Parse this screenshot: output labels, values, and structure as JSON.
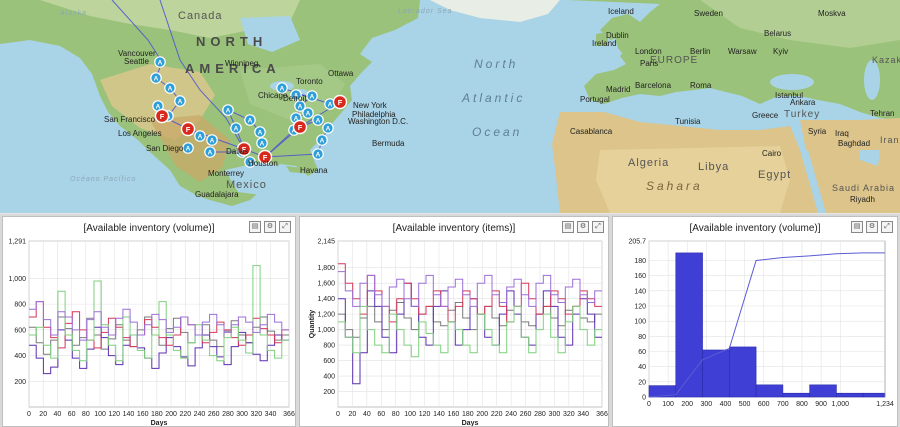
{
  "map": {
    "labels": {
      "canada": "Canada",
      "north": "NORTH",
      "america": "AMERICA",
      "atlantic_north": "North",
      "atlantic": "Atlantic",
      "ocean": "Ocean",
      "europe": "EUROPE",
      "algeria": "Algeria",
      "libya": "Libya",
      "egypt": "Egypt",
      "sahara": "Sahara",
      "mexico": "Mexico",
      "saudi": "Saudi Arabia",
      "turkey": "Turkey",
      "iran": "Iran",
      "kazak": "Kazak",
      "alaska": "Alaska",
      "labrador": "Labrador Sea",
      "pacific": "Océano Pacífico",
      "cities": [
        {
          "name": "Vancouver",
          "x": 118,
          "y": 50
        },
        {
          "name": "Seattle",
          "x": 124,
          "y": 58
        },
        {
          "name": "Chicago",
          "x": 258,
          "y": 92
        },
        {
          "name": "Toronto",
          "x": 296,
          "y": 78
        },
        {
          "name": "New York",
          "x": 353,
          "y": 102
        },
        {
          "name": "Philadelphia",
          "x": 352,
          "y": 111
        },
        {
          "name": "Washington D.C.",
          "x": 348,
          "y": 118
        },
        {
          "name": "San Francisco",
          "x": 104,
          "y": 116
        },
        {
          "name": "Los Angeles",
          "x": 118,
          "y": 130
        },
        {
          "name": "San Diego",
          "x": 146,
          "y": 145
        },
        {
          "name": "Dallas",
          "x": 226,
          "y": 148
        },
        {
          "name": "Houston",
          "x": 248,
          "y": 160
        },
        {
          "name": "Monterrey",
          "x": 208,
          "y": 170
        },
        {
          "name": "Guadalajara",
          "x": 195,
          "y": 191
        },
        {
          "name": "Havana",
          "x": 300,
          "y": 167
        },
        {
          "name": "Bermuda",
          "x": 372,
          "y": 140
        },
        {
          "name": "Winnipeg",
          "x": 225,
          "y": 60
        },
        {
          "name": "Ottawa",
          "x": 328,
          "y": 70
        },
        {
          "name": "Detroit",
          "x": 283,
          "y": 95
        },
        {
          "name": "Iceland",
          "x": 608,
          "y": 8
        },
        {
          "name": "Dublin",
          "x": 606,
          "y": 32
        },
        {
          "name": "Ireland",
          "x": 592,
          "y": 40
        },
        {
          "name": "London",
          "x": 635,
          "y": 48
        },
        {
          "name": "Paris",
          "x": 640,
          "y": 60
        },
        {
          "name": "Berlin",
          "x": 690,
          "y": 48
        },
        {
          "name": "Warsaw",
          "x": 728,
          "y": 48
        },
        {
          "name": "Kyiv",
          "x": 773,
          "y": 48
        },
        {
          "name": "Moskva",
          "x": 818,
          "y": 10
        },
        {
          "name": "Belarus",
          "x": 764,
          "y": 30
        },
        {
          "name": "Sweden",
          "x": 694,
          "y": 10
        },
        {
          "name": "Barcelona",
          "x": 635,
          "y": 82
        },
        {
          "name": "Roma",
          "x": 690,
          "y": 82
        },
        {
          "name": "Madrid",
          "x": 606,
          "y": 86
        },
        {
          "name": "Portugal",
          "x": 580,
          "y": 96
        },
        {
          "name": "Casablanca",
          "x": 570,
          "y": 128
        },
        {
          "name": "Tunisia",
          "x": 675,
          "y": 118
        },
        {
          "name": "Greece",
          "x": 752,
          "y": 112
        },
        {
          "name": "Istanbul",
          "x": 775,
          "y": 92
        },
        {
          "name": "Ankara",
          "x": 790,
          "y": 99
        },
        {
          "name": "Syria",
          "x": 808,
          "y": 128
        },
        {
          "name": "Iraq",
          "x": 835,
          "y": 130
        },
        {
          "name": "Baghdad",
          "x": 838,
          "y": 140
        },
        {
          "name": "Tehran",
          "x": 870,
          "y": 110
        },
        {
          "name": "Cairo",
          "x": 762,
          "y": 150
        },
        {
          "name": "Riyadh",
          "x": 850,
          "y": 196
        }
      ]
    },
    "markers_a": [
      {
        "x": 160,
        "y": 62
      },
      {
        "x": 156,
        "y": 78
      },
      {
        "x": 170,
        "y": 88
      },
      {
        "x": 180,
        "y": 101
      },
      {
        "x": 158,
        "y": 106
      },
      {
        "x": 168,
        "y": 116
      },
      {
        "x": 200,
        "y": 136
      },
      {
        "x": 212,
        "y": 140
      },
      {
        "x": 188,
        "y": 148
      },
      {
        "x": 210,
        "y": 152
      },
      {
        "x": 228,
        "y": 110
      },
      {
        "x": 250,
        "y": 120
      },
      {
        "x": 260,
        "y": 132
      },
      {
        "x": 262,
        "y": 143
      },
      {
        "x": 242,
        "y": 152
      },
      {
        "x": 250,
        "y": 162
      },
      {
        "x": 236,
        "y": 128
      },
      {
        "x": 296,
        "y": 95
      },
      {
        "x": 312,
        "y": 96
      },
      {
        "x": 300,
        "y": 106
      },
      {
        "x": 308,
        "y": 113
      },
      {
        "x": 296,
        "y": 118
      },
      {
        "x": 318,
        "y": 120
      },
      {
        "x": 328,
        "y": 128
      },
      {
        "x": 322,
        "y": 140
      },
      {
        "x": 318,
        "y": 154
      },
      {
        "x": 330,
        "y": 104
      },
      {
        "x": 294,
        "y": 130
      },
      {
        "x": 282,
        "y": 88
      }
    ],
    "markers_f": [
      {
        "x": 162,
        "y": 116
      },
      {
        "x": 188,
        "y": 129
      },
      {
        "x": 244,
        "y": 149
      },
      {
        "x": 265,
        "y": 157
      },
      {
        "x": 300,
        "y": 127
      },
      {
        "x": 340,
        "y": 102
      }
    ],
    "marker_a_letter": "A",
    "marker_f_letter": "F",
    "accent_a": "#2e9fd8",
    "accent_f": "#d9291c",
    "route_color": "#4a4fd6"
  },
  "panels": [
    {
      "title": "[Available inventory (volume)]",
      "buttons": [
        "▤",
        "⚙",
        "⤢"
      ]
    },
    {
      "title": "[Available inventory (items)]",
      "buttons": [
        "▤",
        "⚙",
        "⤢"
      ]
    },
    {
      "title": "[Available inventory (volume)]",
      "buttons": [
        "▤",
        "⚙",
        "⤢"
      ]
    }
  ],
  "chart_data": [
    {
      "type": "line",
      "title": "[Available inventory (volume)]",
      "xlabel": "Days",
      "ylabel": "",
      "x_ticks": [
        "0",
        "20",
        "40",
        "60",
        "80",
        "100",
        "120",
        "140",
        "160",
        "180",
        "200",
        "220",
        "240",
        "260",
        "280",
        "300",
        "320",
        "340",
        "366"
      ],
      "y_ticks": [
        "200",
        "400",
        "600",
        "800",
        "1,000",
        "1,291"
      ],
      "xlim": [
        0,
        366
      ],
      "ylim": [
        0,
        1291
      ],
      "grid": true,
      "series": [
        {
          "color": "#7a7a7a",
          "values": [
            620,
            500,
            410,
            520,
            700,
            610,
            480,
            540,
            690,
            560,
            450,
            530,
            640,
            520,
            470,
            600,
            700,
            560,
            480,
            610,
            690,
            580,
            500,
            560,
            640,
            520,
            470,
            590,
            670,
            560,
            500,
            620,
            700,
            590,
            520,
            560
          ]
        },
        {
          "color": "#5a2fb0",
          "values": [
            480,
            380,
            260,
            310,
            600,
            520,
            380,
            300,
            450,
            620,
            540,
            400,
            330,
            480,
            560,
            460,
            380,
            300,
            420,
            540,
            470,
            390,
            320,
            460,
            560,
            470,
            390,
            330,
            470,
            580,
            500,
            410,
            360,
            480,
            560,
            520
          ]
        },
        {
          "color": "#d6365a",
          "values": [
            700,
            820,
            620,
            540,
            460,
            650,
            740,
            600,
            520,
            460,
            580,
            690,
            620,
            540,
            470,
            560,
            680,
            620,
            540,
            480,
            560,
            700,
            640,
            560,
            500,
            580,
            660,
            600,
            540,
            480,
            560,
            690,
            610,
            560,
            500,
            600
          ]
        },
        {
          "color": "#7fd07f",
          "values": [
            560,
            620,
            480,
            380,
            900,
            560,
            440,
            360,
            520,
            980,
            640,
            480,
            360,
            700,
            560,
            440,
            380,
            560,
            820,
            560,
            440,
            380,
            500,
            640,
            520,
            400,
            360,
            540,
            620,
            520,
            420,
            1100,
            560,
            440,
            380,
            520
          ]
        },
        {
          "color": "#9b6fd8",
          "values": [
            760,
            820,
            680,
            560,
            740,
            700,
            600,
            520,
            680,
            740,
            620,
            560,
            690,
            760,
            660,
            560,
            640,
            720,
            680,
            580,
            620,
            700,
            640,
            560,
            660,
            720,
            640,
            580,
            640,
            700,
            660,
            580,
            640,
            720,
            660,
            600
          ]
        }
      ]
    },
    {
      "type": "line",
      "title": "[Available inventory (items)]",
      "xlabel": "Days",
      "ylabel": "Quantity",
      "x_ticks": [
        "0",
        "20",
        "40",
        "60",
        "80",
        "100",
        "120",
        "140",
        "160",
        "180",
        "200",
        "220",
        "240",
        "260",
        "280",
        "300",
        "320",
        "340",
        "366"
      ],
      "y_ticks": [
        "200",
        "400",
        "600",
        "800",
        "1,000",
        "1,200",
        "1,400",
        "1,600",
        "1,800",
        "2,145"
      ],
      "xlim": [
        0,
        366
      ],
      "ylim": [
        0,
        2145
      ],
      "grid": true,
      "series": [
        {
          "color": "#7a7a7a",
          "values": [
            1200,
            1000,
            900,
            1150,
            1300,
            1100,
            1000,
            1250,
            1350,
            1150,
            1000,
            1200,
            1300,
            1100,
            1050,
            1250,
            1350,
            1150,
            1000,
            1200,
            1300,
            1150,
            1050,
            1250,
            1300,
            1100,
            1050,
            1200,
            1300,
            1150,
            1050,
            1250,
            1300,
            1150,
            1100,
            1200
          ]
        },
        {
          "color": "#5a2fb0",
          "values": [
            1400,
            900,
            300,
            700,
            1500,
            1300,
            900,
            700,
            1200,
            1600,
            1300,
            900,
            800,
            1300,
            1500,
            1100,
            800,
            1000,
            1400,
            1200,
            900,
            800,
            1200,
            1500,
            1200,
            900,
            800,
            1200,
            1500,
            1300,
            900,
            800,
            1200,
            1400,
            1200,
            900
          ]
        },
        {
          "color": "#d6365a",
          "values": [
            1850,
            1600,
            1400,
            1200,
            1700,
            1500,
            1300,
            1100,
            1400,
            1600,
            1400,
            1200,
            1300,
            1500,
            1300,
            1100,
            1300,
            1500,
            1400,
            1200,
            1300,
            1500,
            1300,
            1100,
            1300,
            1600,
            1400,
            1200,
            1300,
            1500,
            1400,
            1200,
            1300,
            1500,
            1400,
            1300
          ]
        },
        {
          "color": "#7fd07f",
          "values": [
            1100,
            900,
            700,
            1300,
            1000,
            800,
            700,
            1200,
            1000,
            800,
            650,
            1100,
            950,
            800,
            700,
            1100,
            1000,
            800,
            700,
            1200,
            1000,
            800,
            700,
            1100,
            1300,
            900,
            700,
            1000,
            1200,
            900,
            700,
            1100,
            1300,
            1000,
            800,
            1000
          ]
        },
        {
          "color": "#9b6fd8",
          "values": [
            1750,
            1500,
            1300,
            1600,
            1700,
            1450,
            1300,
            1550,
            1650,
            1400,
            1300,
            1600,
            1700,
            1450,
            1300,
            1550,
            1650,
            1450,
            1300,
            1600,
            1700,
            1450,
            1350,
            1550,
            1650,
            1450,
            1300,
            1600,
            1700,
            1450,
            1350,
            1550,
            1650,
            1450,
            1350,
            1500
          ]
        }
      ]
    },
    {
      "type": "bar",
      "title": "[Available inventory (volume)]",
      "xlabel": "",
      "ylabel": "",
      "x_ticks": [
        "0",
        "100",
        "200",
        "300",
        "400",
        "500",
        "600",
        "700",
        "800",
        "900",
        "1,000",
        "1,234"
      ],
      "y_ticks": [
        "0",
        "20",
        "40",
        "60",
        "80",
        "100",
        "120",
        "140",
        "160",
        "180",
        "205.7"
      ],
      "xlim": [
        0,
        1234
      ],
      "ylim": [
        0,
        205.7
      ],
      "bins": [
        {
          "x0": 0,
          "x1": 140,
          "value": 15
        },
        {
          "x0": 140,
          "x1": 280,
          "value": 190
        },
        {
          "x0": 280,
          "x1": 420,
          "value": 62
        },
        {
          "x0": 420,
          "x1": 560,
          "value": 66
        },
        {
          "x0": 560,
          "x1": 700,
          "value": 16
        },
        {
          "x0": 700,
          "x1": 840,
          "value": 5
        },
        {
          "x0": 840,
          "x1": 980,
          "value": 16
        },
        {
          "x0": 980,
          "x1": 1120,
          "value": 5
        },
        {
          "x0": 1120,
          "x1": 1234,
          "value": 5
        }
      ],
      "bar_color": "#3f3fd6",
      "cumulative": {
        "color": "#5b5bd6",
        "x": [
          0,
          140,
          280,
          420,
          560,
          700,
          840,
          980,
          1120,
          1234
        ],
        "y": [
          0,
          3,
          49,
          64,
          180,
          184,
          186,
          189,
          190,
          190
        ],
        "max": 205.7
      }
    }
  ]
}
